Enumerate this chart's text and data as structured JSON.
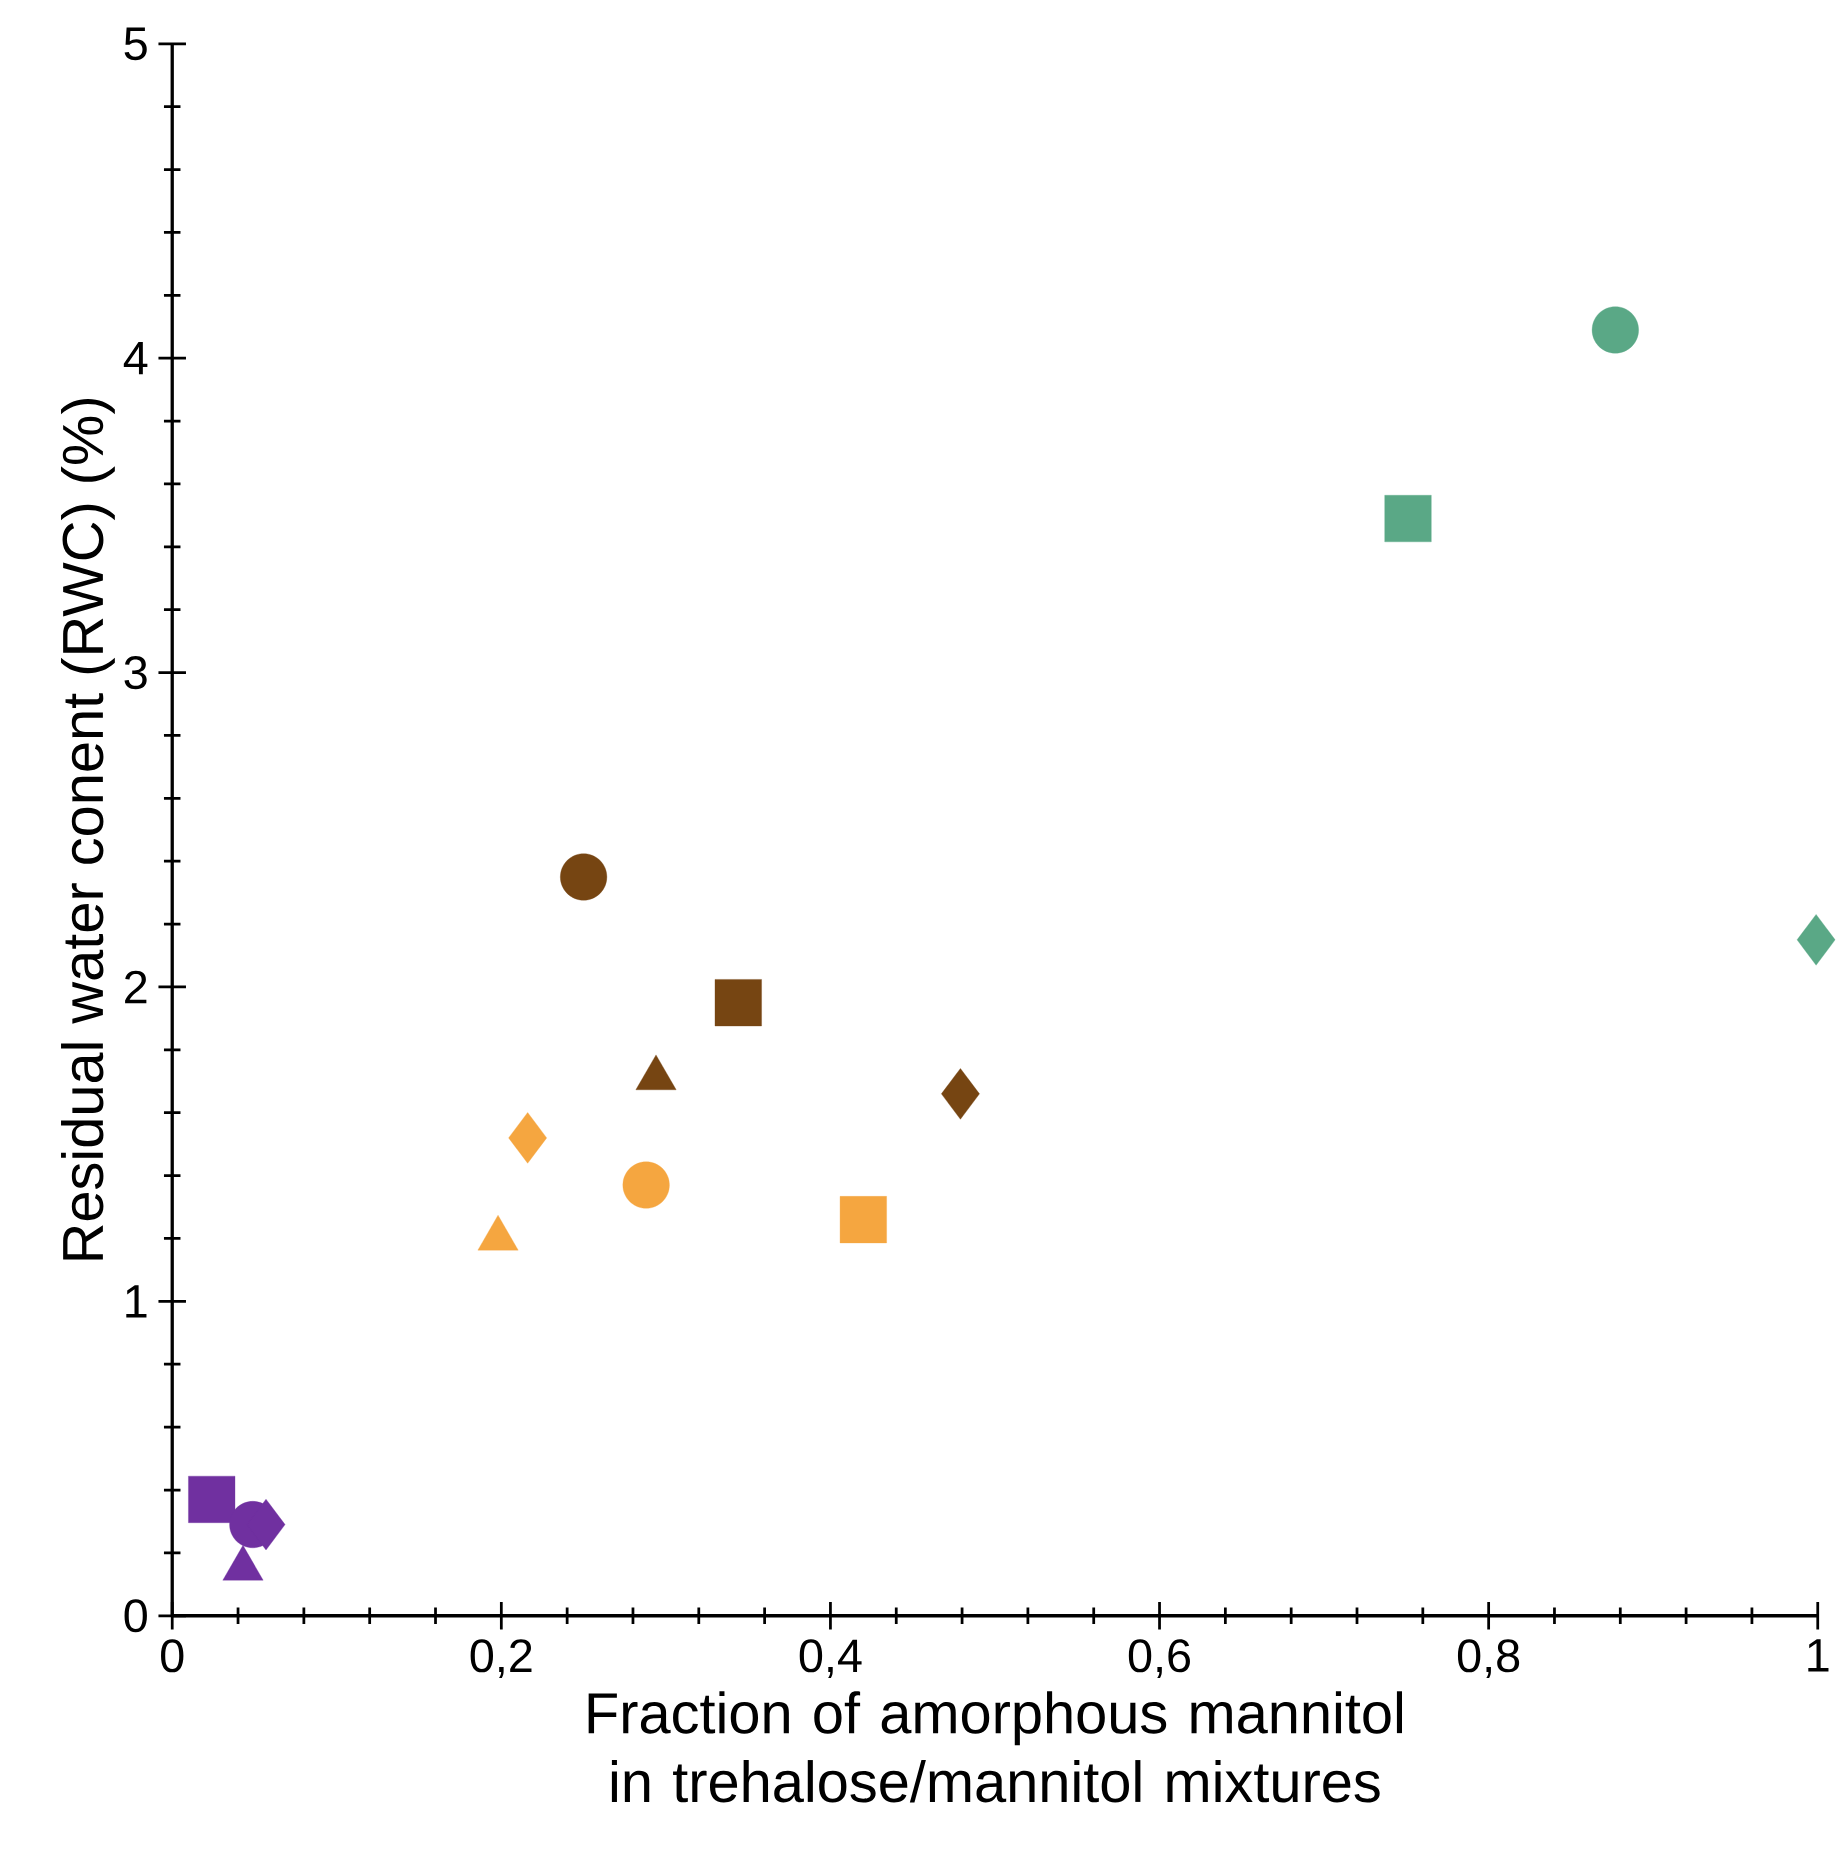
{
  "chart_data": {
    "type": "scatter",
    "xlabel": "Fraction of amorphous mannitol in trehalose/mannitol mixtures",
    "ylabel": "Residual water conent (RWC) (%)",
    "xlim": [
      0,
      1
    ],
    "ylim": [
      0,
      5
    ],
    "xticks": [
      0,
      {
        "value": 0.2,
        "label": "0,2"
      },
      {
        "value": 0.4,
        "label": "0,4"
      },
      {
        "value": 0.6,
        "label": "0,6"
      },
      {
        "value": 0.8,
        "label": "0,8"
      },
      1
    ],
    "yticks": [
      0,
      1,
      2,
      3,
      4,
      5
    ],
    "grid": false,
    "series": [
      {
        "color": "#7030a0",
        "marker": "square",
        "x": [
          0.024
        ],
        "values": [
          0.37
        ]
      },
      {
        "color": "#7030a0",
        "marker": "circle",
        "x": [
          0.049
        ],
        "values": [
          0.29
        ]
      },
      {
        "color": "#7030a0",
        "marker": "diamond",
        "x": [
          0.057
        ],
        "values": [
          0.29
        ]
      },
      {
        "color": "#7030a0",
        "marker": "triangle",
        "x": [
          0.043
        ],
        "values": [
          0.15
        ]
      },
      {
        "color": "#f5a640",
        "marker": "triangle",
        "x": [
          0.198
        ],
        "values": [
          1.2
        ]
      },
      {
        "color": "#f5a640",
        "marker": "diamond",
        "x": [
          0.216
        ],
        "values": [
          1.52
        ]
      },
      {
        "color": "#f5a640",
        "marker": "circle",
        "x": [
          0.288
        ],
        "values": [
          1.37
        ]
      },
      {
        "color": "#f5a640",
        "marker": "square",
        "x": [
          0.42
        ],
        "values": [
          1.26
        ]
      },
      {
        "color": "#764512",
        "marker": "circle",
        "x": [
          0.25
        ],
        "values": [
          2.35
        ]
      },
      {
        "color": "#764512",
        "marker": "triangle",
        "x": [
          0.294
        ],
        "values": [
          1.71
        ]
      },
      {
        "color": "#764512",
        "marker": "square",
        "x": [
          0.344
        ],
        "values": [
          1.95
        ]
      },
      {
        "color": "#764512",
        "marker": "diamond",
        "x": [
          0.479
        ],
        "values": [
          1.66
        ]
      },
      {
        "color": "#5aa886",
        "marker": "square",
        "x": [
          0.751
        ],
        "values": [
          3.49
        ]
      },
      {
        "color": "#5aa886",
        "marker": "circle",
        "x": [
          0.877
        ],
        "values": [
          4.09
        ]
      },
      {
        "color": "#5aa886",
        "marker": "diamond",
        "x": [
          0.999
        ],
        "values": [
          2.15
        ]
      }
    ]
  }
}
